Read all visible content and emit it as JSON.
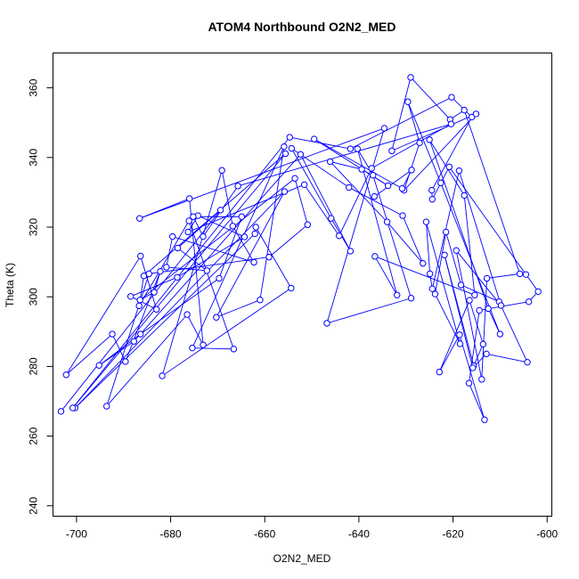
{
  "chart_data": {
    "type": "line",
    "title": "ATOM4 Northbound O2N2_MED",
    "xlabel": "O2N2_MED",
    "ylabel": "Theta (K)",
    "xlim": [
      -705,
      -599
    ],
    "ylim": [
      237,
      370
    ],
    "xticks": [
      -700,
      -680,
      -660,
      -640,
      -620,
      -600
    ],
    "yticks": [
      240,
      260,
      280,
      300,
      320,
      340,
      360
    ],
    "series_color": "#0000ff",
    "marker": "open-circle",
    "series": [
      {
        "values": [
          [
            -703.3,
            267.1
          ],
          [
            -669.4,
            324.9
          ],
          [
            -678.5,
            314.0
          ],
          [
            -672.3,
            307.5
          ],
          [
            -680.9,
            308.5
          ],
          [
            -679.6,
            317.3
          ],
          [
            -662.3,
            309.9
          ],
          [
            -666.8,
            320.3
          ],
          [
            -669.1,
            336.3
          ],
          [
            -681.8,
            277.3
          ],
          [
            -654.4,
            302.5
          ],
          [
            -661.9,
            320.0
          ],
          [
            -662.1,
            318.1
          ],
          [
            -700.3,
            268.1
          ],
          [
            -655.8,
            330.2
          ],
          [
            -670.3,
            294.1
          ],
          [
            -661.0,
            299.1
          ],
          [
            -655.9,
            343.1
          ],
          [
            -675.4,
            285.3
          ],
          [
            -666.6,
            285.0
          ],
          [
            -676.1,
            321.8
          ],
          [
            -686.7,
            297.4
          ],
          [
            -685.7,
            306.0
          ],
          [
            -655.6,
            341.1
          ],
          [
            -700.8,
            268.1
          ],
          [
            -654.7,
            345.8
          ],
          [
            -641.8,
            342.5
          ],
          [
            -620.3,
            357.3
          ],
          [
            -616.0,
            351.6
          ],
          [
            -624.5,
            330.6
          ],
          [
            -624.4,
            328.0
          ],
          [
            -620.8,
            337.3
          ],
          [
            -604.5,
            306.4
          ],
          [
            -601.9,
            301.5
          ],
          [
            -603.9,
            298.6
          ],
          [
            -614.4,
            296.1
          ],
          [
            -616.6,
            275.2
          ],
          [
            -613.3,
            264.7
          ],
          [
            -618.6,
            289.1
          ],
          [
            -622.9,
            278.4
          ],
          [
            -616.5,
            299.0
          ],
          [
            -613.6,
            286.4
          ],
          [
            -615.6,
            280.2
          ],
          [
            -621.8,
            312.0
          ],
          [
            -615.8,
            279.6
          ],
          [
            -612.9,
            283.6
          ],
          [
            -604.2,
            281.2
          ],
          [
            -610.2,
            298.6
          ],
          [
            -618.3,
            303.4
          ],
          [
            -621.5,
            318.6
          ],
          [
            -623.8,
            300.8
          ],
          [
            -618.5,
            286.5
          ],
          [
            -625.7,
            321.5
          ],
          [
            -624.9,
            306.6
          ],
          [
            -624.4,
            302.3
          ],
          [
            -618.7,
            336.2
          ],
          [
            -609.8,
            297.5
          ],
          [
            -619.3,
            313.3
          ],
          [
            -613.9,
            276.3
          ],
          [
            -612.8,
            305.3
          ],
          [
            -605.8,
            306.6
          ],
          [
            -617.6,
            353.6
          ],
          [
            -620.6,
            350.9
          ],
          [
            -629.0,
            363.0
          ],
          [
            -633.0,
            341.9
          ],
          [
            -615.1,
            352.5
          ],
          [
            -630.4,
            330.6
          ],
          [
            -627.1,
            344.2
          ],
          [
            -629.6,
            356.0
          ],
          [
            -622.6,
            332.7
          ],
          [
            -610.0,
            289.3
          ],
          [
            -612.5,
            296.6
          ],
          [
            -625.0,
            345.1
          ],
          [
            -617.6,
            329.1
          ],
          [
            -615.4,
            300.5
          ],
          [
            -636.6,
            311.6
          ],
          [
            -631.9,
            300.5
          ],
          [
            -640.3,
            342.5
          ],
          [
            -637.0,
            334.9
          ],
          [
            -628.9,
            299.6
          ],
          [
            -646.8,
            292.4
          ],
          [
            -634.6,
            348.4
          ],
          [
            -686.6,
            322.5
          ],
          [
            -676.0,
            328.2
          ],
          [
            -673.1,
            286.2
          ],
          [
            -676.5,
            294.9
          ],
          [
            -693.6,
            268.6
          ],
          [
            -684.6,
            306.6
          ],
          [
            -659.1,
            311.4
          ],
          [
            -650.9,
            320.7
          ],
          [
            -653.6,
            334.0
          ],
          [
            -686.5,
            299.1
          ],
          [
            -683.5,
            301.3
          ],
          [
            -682.2,
            307.3
          ],
          [
            -689.6,
            281.4
          ],
          [
            -692.4,
            289.3
          ],
          [
            -702.2,
            277.6
          ],
          [
            -686.4,
            311.7
          ],
          [
            -683.0,
            296.4
          ],
          [
            -688.5,
            300.1
          ],
          [
            -678.6,
            305.6
          ],
          [
            -664.3,
            317.2
          ],
          [
            -674.2,
            323.3
          ],
          [
            -676.3,
            318.6
          ],
          [
            -651.6,
            332.2
          ],
          [
            -644.2,
            317.5
          ],
          [
            -637.3,
            336.9
          ],
          [
            -620.4,
            349.6
          ],
          [
            -665.7,
            331.8
          ],
          [
            -673.1,
            317.3
          ],
          [
            -675.2,
            323.0
          ],
          [
            -664.9,
            323.0
          ],
          [
            -669.7,
            305.3
          ],
          [
            -686.4,
            289.3
          ],
          [
            -695.2,
            280.3
          ],
          [
            -687.8,
            287.2
          ],
          [
            -652.4,
            340.9
          ],
          [
            -641.8,
            313.1
          ],
          [
            -645.9,
            322.5
          ],
          [
            -654.3,
            342.6
          ],
          [
            -642.1,
            331.4
          ],
          [
            -630.7,
            323.3
          ],
          [
            -626.4,
            309.6
          ],
          [
            -634.0,
            321.5
          ],
          [
            -646.1,
            338.8
          ],
          [
            -639.4,
            336.6
          ],
          [
            -633.8,
            331.9
          ],
          [
            -649.5,
            345.3
          ],
          [
            -630.8,
            331.1
          ],
          [
            -628.8,
            336.4
          ],
          [
            -636.7,
            328.8
          ]
        ]
      }
    ]
  }
}
